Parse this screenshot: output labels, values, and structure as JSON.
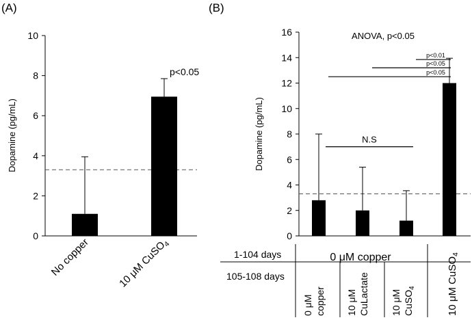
{
  "chart_data": [
    {
      "type": "bar",
      "panel_label": "(A)",
      "title": "",
      "xlabel": "",
      "ylabel": "Dopamine (pg/mL)",
      "ylim": [
        0,
        10
      ],
      "yticks": [
        0,
        2,
        4,
        6,
        8,
        10
      ],
      "categories": [
        {
          "text": "No copper"
        },
        {
          "text": "10 μM CuSO",
          "sub": "4"
        }
      ],
      "values": [
        1.1,
        6.95
      ],
      "errors": [
        2.85,
        0.9
      ],
      "reference_line": 3.3,
      "annotations": [
        {
          "text": "p<0.05",
          "bar": 1
        }
      ]
    },
    {
      "type": "bar",
      "panel_label": "(B)",
      "title": "ANOVA, p<0.05",
      "xlabel": "",
      "ylabel": "Dopamine (pg/mL)",
      "ylim": [
        0,
        16
      ],
      "yticks": [
        0,
        2,
        4,
        6,
        8,
        10,
        12,
        14,
        16
      ],
      "categories": [
        {
          "text": "0 μM copper"
        },
        {
          "text": "10 μM CuLactate"
        },
        {
          "text": "10 μM CuSO",
          "sub": "4"
        },
        {
          "text": "10 μM CuSO",
          "sub": "4"
        }
      ],
      "values": [
        2.8,
        2.0,
        1.2,
        12.0
      ],
      "errors": [
        5.2,
        3.4,
        2.35,
        1.95
      ],
      "reference_line": 3.3,
      "comparisons": [
        {
          "from": 0,
          "to": 2,
          "y": 7.0,
          "label": "N.S"
        },
        {
          "from": 0,
          "to": 3,
          "y": 12.5,
          "label": "p<0.05"
        },
        {
          "from": 1,
          "to": 3,
          "y": 13.2,
          "label": "p<0.05"
        },
        {
          "from": 2,
          "to": 3,
          "y": 13.85,
          "label": "p<0.01"
        }
      ],
      "treatment_table": {
        "row1_label": "1-104 days",
        "row1_value": "0 μM copper",
        "row2_label": "105-108 days",
        "row2_values": [
          {
            "lines": [
              "0 μM",
              "copper"
            ]
          },
          {
            "lines": [
              "10 μM",
              "CuLactate"
            ]
          },
          {
            "lines": [
              "10 μM",
              "CuSO"
            ],
            "sub": "4"
          }
        ],
        "last_column": {
          "text": "10 μM CuSO",
          "sub": "4"
        }
      }
    }
  ]
}
